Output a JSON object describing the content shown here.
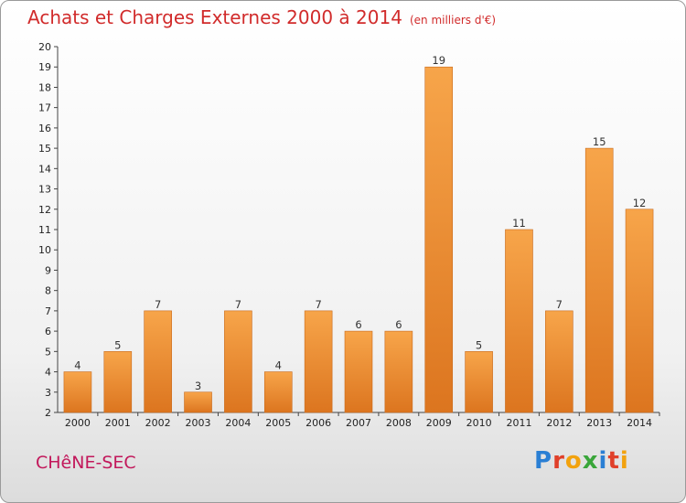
{
  "chart_data": {
    "type": "bar",
    "title": "Achats et Charges Externes 2000 à 2014",
    "subtitle": "(en milliers d'€)",
    "categories": [
      "2000",
      "2001",
      "2002",
      "2003",
      "2004",
      "2005",
      "2006",
      "2007",
      "2008",
      "2009",
      "2010",
      "2011",
      "2012",
      "2013",
      "2014"
    ],
    "values": [
      4,
      5,
      7,
      3,
      7,
      4,
      7,
      6,
      6,
      19,
      5,
      11,
      7,
      15,
      12
    ],
    "yticks": [
      2,
      3,
      4,
      5,
      6,
      7,
      8,
      9,
      10,
      11,
      12,
      13,
      14,
      15,
      16,
      17,
      18,
      19,
      20
    ],
    "ylim": [
      2,
      20
    ],
    "grid": false,
    "bar_color": "#f39a3c",
    "bar_color_dark": "#d9711e"
  },
  "footer": {
    "location": "CHêNE-SEC",
    "brand": "Proxiti"
  }
}
